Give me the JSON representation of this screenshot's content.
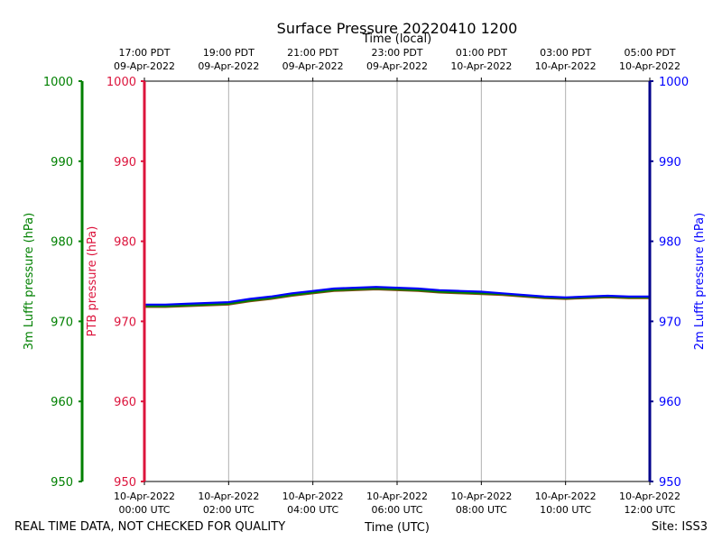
{
  "chart_data": {
    "type": "line",
    "title": "Surface Pressure 20220410 1200",
    "xlabel_bottom": "Time (UTC)",
    "xlabel_top": "Time (local)",
    "ylabel_left_outer": "3m Lufft pressure (hPa)",
    "ylabel_left_inner": "PTB pressure (hPa)",
    "ylabel_right": "2m Lufft pressure (hPa)",
    "ylim": [
      950,
      1000
    ],
    "xlim_hours": [
      0,
      12
    ],
    "yticks": [
      "950",
      "960",
      "970",
      "980",
      "990",
      "1000"
    ],
    "yticks_values": [
      950,
      960,
      970,
      980,
      990,
      1000
    ],
    "xticks_hours": [
      0,
      2,
      4,
      6,
      8,
      10,
      12
    ],
    "xticks_bottom": [
      [
        "10-Apr-2022",
        "00:00 UTC"
      ],
      [
        "10-Apr-2022",
        "02:00 UTC"
      ],
      [
        "10-Apr-2022",
        "04:00 UTC"
      ],
      [
        "10-Apr-2022",
        "06:00 UTC"
      ],
      [
        "10-Apr-2022",
        "08:00 UTC"
      ],
      [
        "10-Apr-2022",
        "10:00 UTC"
      ],
      [
        "10-Apr-2022",
        "12:00 UTC"
      ]
    ],
    "xticks_top": [
      [
        "17:00 PDT",
        "09-Apr-2022"
      ],
      [
        "19:00 PDT",
        "09-Apr-2022"
      ],
      [
        "21:00 PDT",
        "09-Apr-2022"
      ],
      [
        "23:00 PDT",
        "09-Apr-2022"
      ],
      [
        "01:00 PDT",
        "10-Apr-2022"
      ],
      [
        "03:00 PDT",
        "10-Apr-2022"
      ],
      [
        "05:00 PDT",
        "10-Apr-2022"
      ]
    ],
    "grid": "vertical",
    "series": [
      {
        "name": "PTB pressure",
        "color": "#8b4513",
        "x": [
          0,
          0.5,
          1,
          1.5,
          2,
          2.5,
          3,
          3.5,
          4,
          4.5,
          5,
          5.5,
          6,
          6.5,
          7,
          7.5,
          8,
          8.5,
          9,
          9.5,
          10,
          10.5,
          11,
          11.5,
          12
        ],
        "values": [
          971.8,
          971.8,
          971.9,
          972.0,
          972.1,
          972.5,
          972.8,
          973.2,
          973.5,
          973.8,
          973.9,
          974.0,
          973.9,
          973.8,
          973.6,
          973.5,
          973.4,
          973.3,
          973.1,
          972.9,
          972.8,
          972.9,
          973.0,
          972.9,
          972.9
        ]
      },
      {
        "name": "3m Lufft pressure",
        "color": "#008000",
        "x": [
          0,
          0.5,
          1,
          1.5,
          2,
          2.5,
          3,
          3.5,
          4,
          4.5,
          5,
          5.5,
          6,
          6.5,
          7,
          7.5,
          8,
          8.5,
          9,
          9.5,
          10,
          10.5,
          11,
          11.5,
          12
        ],
        "values": [
          971.9,
          971.9,
          972.0,
          972.1,
          972.2,
          972.6,
          972.9,
          973.3,
          973.6,
          973.9,
          974.0,
          974.1,
          974.0,
          973.9,
          973.7,
          973.6,
          973.5,
          973.4,
          973.2,
          973.0,
          972.9,
          973.0,
          973.1,
          973.0,
          973.0
        ]
      },
      {
        "name": "2m Lufft pressure",
        "color": "#0000ff",
        "x": [
          0,
          0.5,
          1,
          1.5,
          2,
          2.5,
          3,
          3.5,
          4,
          4.5,
          5,
          5.5,
          6,
          6.5,
          7,
          7.5,
          8,
          8.5,
          9,
          9.5,
          10,
          10.5,
          11,
          11.5,
          12
        ],
        "values": [
          972.1,
          972.1,
          972.2,
          972.3,
          972.4,
          972.8,
          973.1,
          973.5,
          973.8,
          974.1,
          974.2,
          974.3,
          974.2,
          974.1,
          973.9,
          973.8,
          973.7,
          973.5,
          973.3,
          973.1,
          973.0,
          973.1,
          973.2,
          973.1,
          973.1
        ]
      }
    ],
    "axis_colors": {
      "left_outer": "#008000",
      "left_inner": "#dc143c",
      "right": "#00008b",
      "right_labels": "#0000ff"
    },
    "footer_left": "REAL TIME DATA, NOT CHECKED FOR QUALITY",
    "footer_right": "Site: ISS3"
  }
}
